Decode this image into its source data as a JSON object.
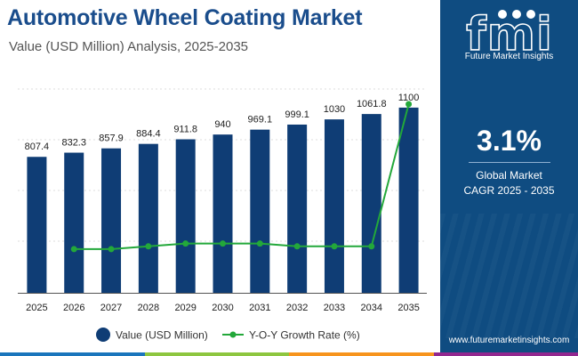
{
  "header": {
    "title": "Automotive Wheel Coating Market",
    "subtitle": "Value (USD Million) Analysis, 2025-2035"
  },
  "brand": {
    "logo_text": "fmi",
    "name": "Future Market Insights",
    "website": "www.futuremarketinsights.com"
  },
  "cagr": {
    "value": "3.1%",
    "label_line1": "Global Market",
    "label_line2": "CAGR 2025 - 2035"
  },
  "colors": {
    "bar": "#0f3d75",
    "line": "#23a83a",
    "title": "#1a4d8c",
    "panel": "#0f4c81",
    "bottom_bar": [
      "#1a75bc",
      "#8dc63f",
      "#f7941d",
      "#92278f"
    ]
  },
  "chart_data": {
    "type": "bar",
    "title": "Automotive Wheel Coating Market",
    "categories": [
      "2025",
      "2026",
      "2027",
      "2028",
      "2029",
      "2030",
      "2031",
      "2032",
      "2033",
      "2034",
      "2035"
    ],
    "series": [
      {
        "name": "Value (USD Million)",
        "type": "bar",
        "values": [
          807.4,
          832.3,
          857.9,
          884.4,
          911.8,
          940,
          969.1,
          999.1,
          1030,
          1061.8,
          1100
        ],
        "labels": [
          "807.4",
          "832.3",
          "857.9",
          "884.4",
          "911.8",
          "940",
          "969.1",
          "999.1",
          "1030",
          "1061.8",
          "1100"
        ]
      },
      {
        "name": "Y-O-Y Growth Rate (%)",
        "type": "line",
        "values": [
          null,
          3.08,
          3.08,
          3.09,
          3.1,
          3.1,
          3.1,
          3.09,
          3.09,
          3.09,
          3.6
        ]
      }
    ],
    "legend": [
      "Value (USD Million)",
      "Y-O-Y Growth Rate (%)"
    ],
    "legend_position": "bottom",
    "grid": true
  }
}
